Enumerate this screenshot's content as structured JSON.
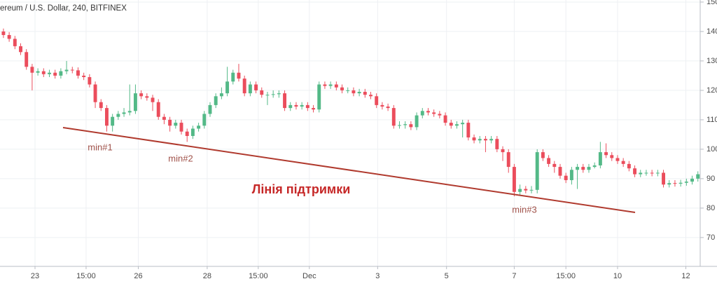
{
  "chart_data": {
    "type": "candlestick",
    "title": "ereum / U.S. Dollar, 240, BITFINEX",
    "up_color": "#53b987",
    "down_color": "#eb4d5c",
    "grid": true,
    "xlim": [
      -0.6,
      121.4
    ],
    "xticks": [
      {
        "value": 5.5,
        "label": "23"
      },
      {
        "value": 14.4,
        "label": "15:00"
      },
      {
        "value": 23.5,
        "label": "26"
      },
      {
        "value": 35.5,
        "label": "28"
      },
      {
        "value": 44.4,
        "label": "15:00"
      },
      {
        "value": 53.3,
        "label": "Dec"
      },
      {
        "value": 65.2,
        "label": "3"
      },
      {
        "value": 77.2,
        "label": "5"
      },
      {
        "value": 89,
        "label": "7"
      },
      {
        "value": 98,
        "label": "15:00"
      },
      {
        "value": 107,
        "label": "10"
      },
      {
        "value": 118.9,
        "label": "12"
      }
    ],
    "ylim": [
      60.2,
      150.7
    ],
    "yticks": [
      70,
      80,
      90,
      100,
      110,
      120,
      130,
      140,
      150
    ],
    "annotations": [
      "min#1",
      "min#2",
      "min#3",
      "Лінія підтримки"
    ],
    "open": [
      140,
      138.8,
      137.5,
      135,
      133,
      128,
      126,
      126.5,
      125.5,
      126,
      125,
      126.5,
      127,
      126.8,
      125,
      124.5,
      122,
      116,
      114,
      108,
      111,
      112,
      112.5,
      113,
      119,
      118,
      117.5,
      116,
      111,
      110,
      108,
      109,
      106,
      104.5,
      107,
      108,
      112,
      115,
      118,
      119,
      123,
      126,
      124,
      119,
      122,
      120,
      118.5,
      118.5,
      118.7,
      119,
      114,
      115,
      114.5,
      115,
      114,
      113.5,
      122,
      121.5,
      122,
      121,
      120,
      120,
      119,
      119.5,
      118.5,
      118,
      115,
      114.5,
      114,
      108,
      108.2,
      108.5,
      107.5,
      111.5,
      113,
      112.5,
      112,
      111.5,
      109,
      108,
      108.5,
      109,
      104,
      103,
      103.5,
      103,
      103.5,
      100,
      99,
      94,
      85.5,
      86.5,
      86,
      86.2,
      99,
      97,
      95,
      94,
      91,
      89.5,
      93,
      94,
      93,
      94,
      94.5,
      99,
      98,
      97,
      96,
      95,
      93.5,
      91.5,
      92,
      92,
      91.8,
      92,
      88,
      88.5,
      88.3,
      88.6,
      89,
      90
    ],
    "high": [
      141,
      139.8,
      138.5,
      136,
      134,
      129,
      127.5,
      127.5,
      127,
      127,
      127.5,
      130,
      128,
      127.8,
      126,
      125.5,
      123,
      117,
      115,
      112,
      113,
      114,
      122,
      122,
      120,
      119,
      118.5,
      117,
      112,
      111,
      110,
      110,
      107,
      108,
      109,
      113,
      116,
      119,
      121,
      128,
      127,
      129,
      125,
      123,
      123,
      121,
      119.5,
      120,
      120,
      120,
      116,
      116,
      116,
      116,
      115,
      123,
      123,
      123,
      123,
      122,
      121,
      121,
      120.5,
      120.5,
      119.5,
      119,
      116,
      115.5,
      115,
      109.5,
      109.5,
      109.5,
      112.5,
      114,
      114,
      113.5,
      113,
      112.5,
      110,
      109.5,
      110,
      110,
      105,
      104.5,
      104.5,
      104.5,
      104.5,
      101,
      100,
      95,
      88,
      87.5,
      87.5,
      100,
      100,
      98,
      96,
      95,
      92,
      94,
      95,
      95,
      95,
      95.5,
      102.5,
      102,
      99,
      98,
      97,
      96,
      94.5,
      93,
      93,
      93,
      93,
      93,
      89.5,
      89.5,
      89.6,
      90,
      91,
      92.5
    ],
    "low": [
      137.8,
      136.5,
      134,
      132,
      127,
      120,
      125,
      124.5,
      124.5,
      124,
      124,
      125.5,
      125.8,
      124,
      123.5,
      121,
      114,
      113,
      106,
      106,
      110,
      111,
      111.5,
      112,
      117,
      116.5,
      113,
      110,
      108.5,
      106,
      107,
      105,
      102.5,
      103.5,
      106,
      107,
      111,
      114,
      117,
      118,
      122,
      123,
      118,
      118,
      119,
      117.5,
      115,
      117.5,
      117.5,
      113,
      113,
      113.5,
      113.5,
      113,
      112.5,
      112.5,
      120.5,
      120.5,
      120,
      119,
      119,
      118,
      118,
      117.5,
      117,
      114,
      113.5,
      113,
      107,
      107,
      107,
      106.5,
      106.5,
      110.5,
      111.5,
      111,
      110.5,
      108,
      107,
      107,
      104,
      103,
      102,
      102,
      99,
      102,
      99,
      96,
      92,
      84,
      84.5,
      85,
      85,
      85,
      96,
      94,
      92,
      90,
      88.5,
      88,
      86.5,
      92,
      92,
      93.5,
      93.5,
      97,
      96,
      95,
      94,
      92.5,
      90.5,
      90.5,
      91,
      90.8,
      90.8,
      87,
      87,
      87.3,
      87.3,
      87.6,
      88,
      89
    ],
    "close": [
      138.8,
      137.5,
      135,
      133,
      128,
      126,
      126.5,
      125.5,
      126,
      125,
      126.5,
      127,
      126.8,
      125,
      124.5,
      122,
      116,
      114,
      108,
      111,
      112,
      112.5,
      113,
      119,
      118,
      117.5,
      116,
      111,
      110,
      108,
      109,
      106,
      104.5,
      107,
      108,
      112,
      115,
      118,
      119,
      123,
      126,
      124,
      119,
      122,
      120,
      118.5,
      118.5,
      118.7,
      119,
      114,
      115,
      114.5,
      115,
      114,
      113.5,
      122,
      121.5,
      122,
      121,
      120,
      120,
      119,
      119.5,
      118.5,
      118,
      115,
      114.5,
      114,
      108,
      108.2,
      108.5,
      107.5,
      111.5,
      113,
      112.5,
      112,
      111.5,
      109,
      108,
      108.5,
      109,
      104,
      103,
      103.5,
      103,
      103.5,
      100,
      99,
      94,
      85.5,
      86.5,
      86,
      86.2,
      99,
      97,
      95,
      94,
      91,
      89.5,
      93,
      94,
      93,
      94,
      94.5,
      99,
      98,
      97,
      96,
      95,
      93.5,
      91.5,
      92,
      92,
      91.8,
      92,
      88,
      88.5,
      88.3,
      88.6,
      89,
      90,
      91.5
    ]
  }
}
